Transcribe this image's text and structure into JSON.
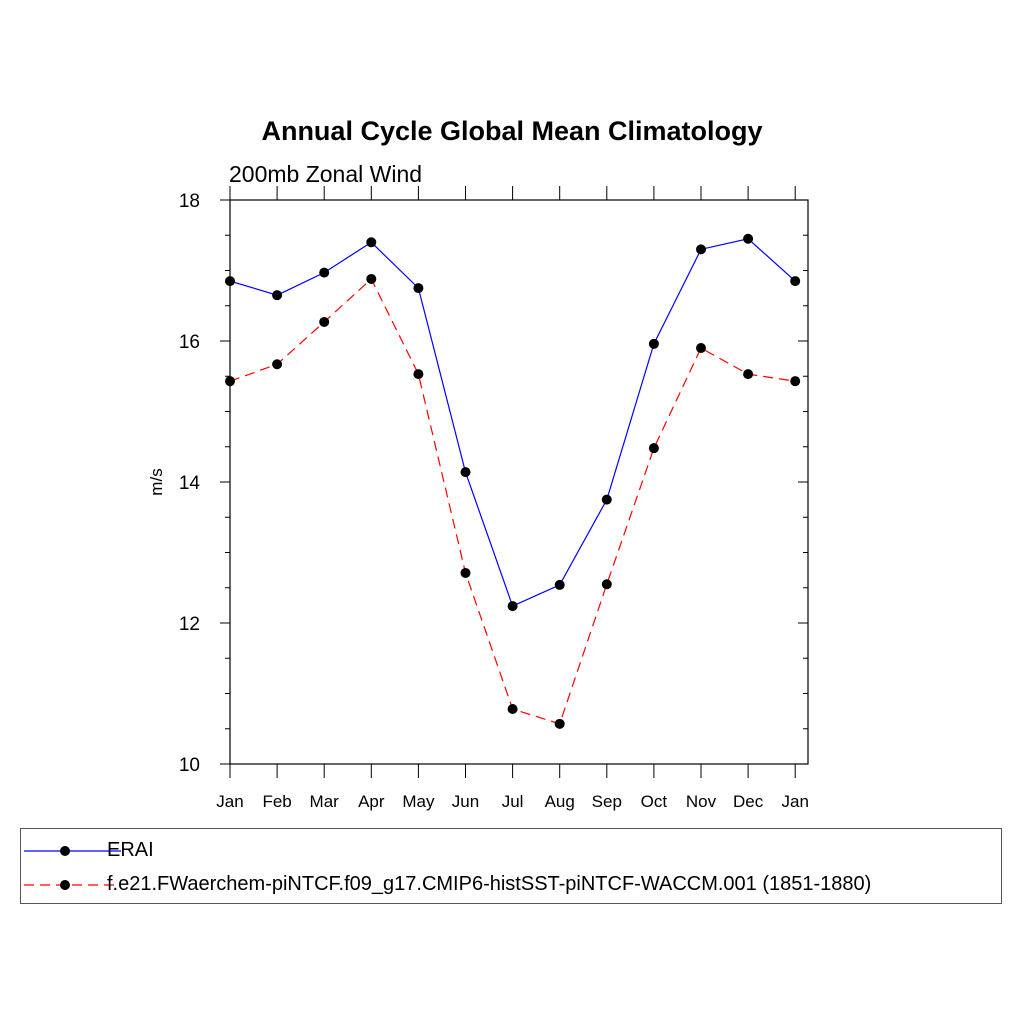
{
  "chart_data": {
    "type": "line",
    "title": "Annual Cycle Global Mean Climatology",
    "subtitle": "200mb Zonal Wind",
    "xlabel": "",
    "ylabel": "m/s",
    "categories": [
      "Jan",
      "Feb",
      "Mar",
      "Apr",
      "May",
      "Jun",
      "Jul",
      "Aug",
      "Sep",
      "Oct",
      "Nov",
      "Dec",
      "Jan"
    ],
    "ylim": [
      10,
      18
    ],
    "yticks": [
      10,
      12,
      14,
      16,
      18
    ],
    "series": [
      {
        "name": "ERAI",
        "color": "#0000ff",
        "style": "solid",
        "values": [
          16.85,
          16.65,
          16.97,
          17.4,
          16.75,
          14.14,
          12.24,
          12.54,
          13.75,
          15.96,
          17.3,
          17.45,
          16.85
        ]
      },
      {
        "name": "f.e21.FWaerchem-piNTCF.f09_g17.CMIP6-histSST-piNTCF-WACCM.001 (1851-1880)",
        "color": "#ff0000",
        "style": "dashed",
        "values": [
          15.43,
          15.67,
          16.27,
          16.88,
          15.53,
          12.71,
          10.78,
          10.57,
          12.55,
          14.48,
          15.9,
          15.53,
          15.43
        ]
      }
    ],
    "legend_position": "bottom"
  }
}
